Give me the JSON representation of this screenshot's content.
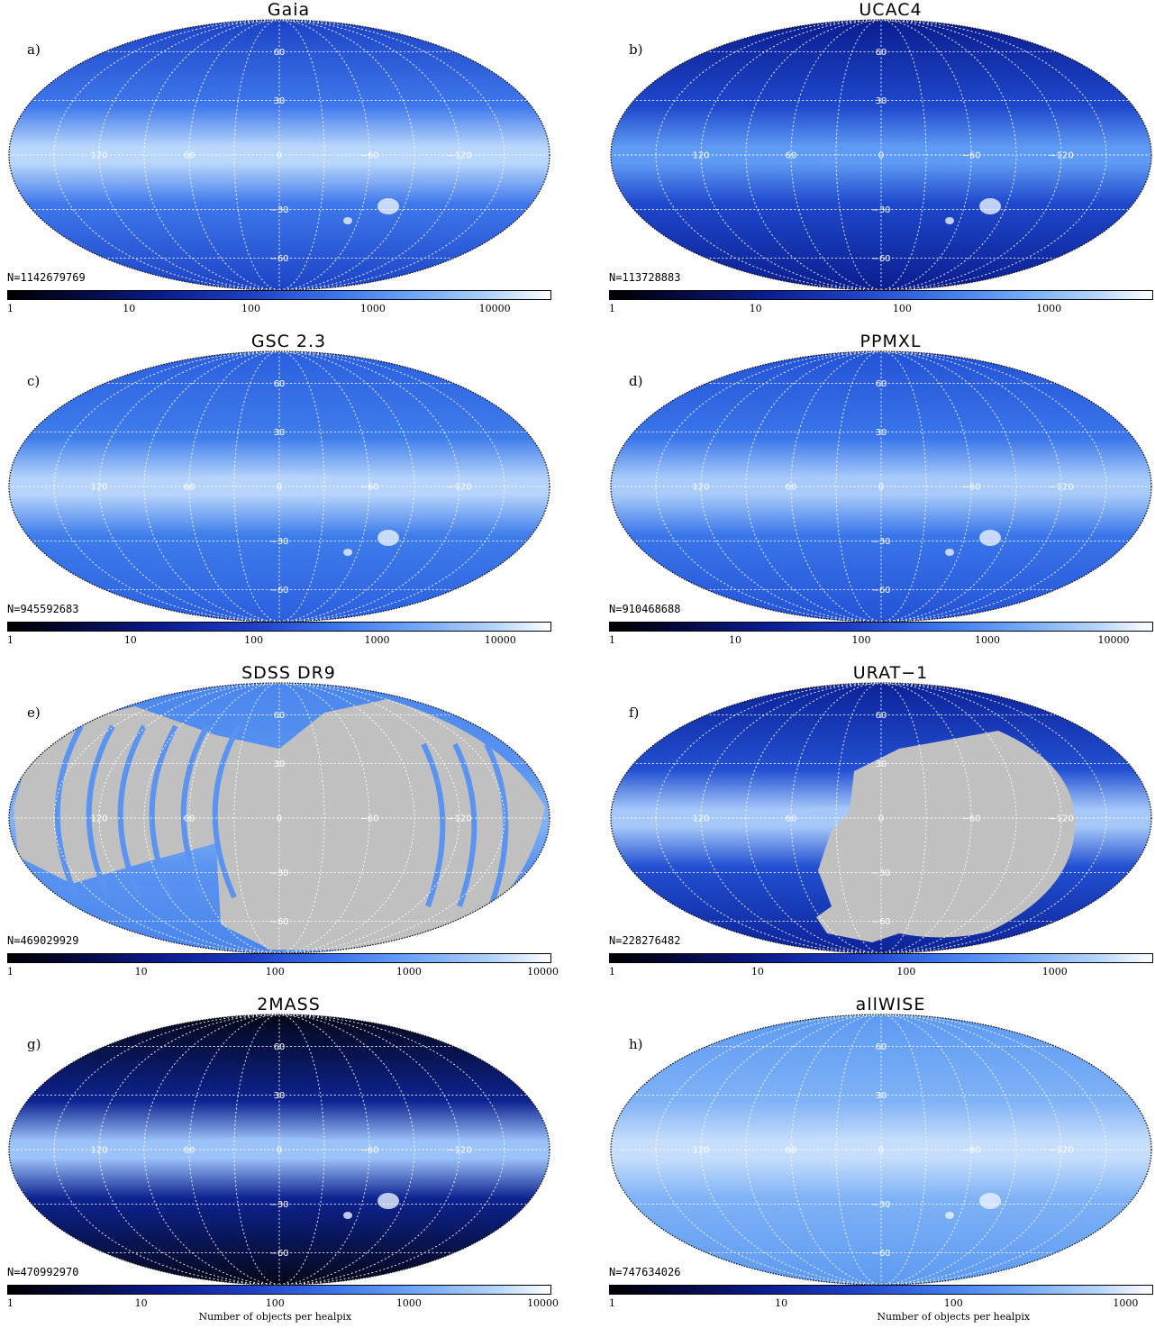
{
  "panels": [
    {
      "title": "Gaia",
      "letter": "a)",
      "count": "N=1142679769",
      "ticks": [
        "1",
        "10",
        "100",
        "1000",
        "10000"
      ],
      "decades": 4.45,
      "colors": {
        "outer": "#1c43c6",
        "mid": "#3f78ec",
        "plane": "#b9d7fb"
      },
      "mask": ""
    },
    {
      "title": "UCAC4",
      "letter": "b)",
      "count": "N=113728883",
      "ticks": [
        "1",
        "10",
        "100",
        "1000"
      ],
      "decades": 3.7,
      "colors": {
        "outer": "#0a1d8f",
        "mid": "#1e48cc",
        "plane": "#5f9af4"
      },
      "mask": ""
    },
    {
      "title": "GSC 2.3",
      "letter": "c)",
      "count": "N=945592683",
      "ticks": [
        "1",
        "10",
        "100",
        "1000",
        "10000"
      ],
      "decades": 4.4,
      "colors": {
        "outer": "#2b5fdf",
        "mid": "#3f7deb",
        "plane": "#b6d4fb"
      },
      "mask": ""
    },
    {
      "title": "PPMXL",
      "letter": "d)",
      "count": "N=910468688",
      "ticks": [
        "1",
        "10",
        "100",
        "1000",
        "10000"
      ],
      "decades": 4.3,
      "colors": {
        "outer": "#2352d6",
        "mid": "#3a76ea",
        "plane": "#a8cbfa"
      },
      "mask": ""
    },
    {
      "title": "SDSS DR9",
      "letter": "e)",
      "count": "N=469029929",
      "ticks": [
        "1",
        "10",
        "100",
        "1000",
        "10000"
      ],
      "decades": 4.05,
      "colors": {
        "outer": "#4a86ee",
        "mid": "#5a93f0",
        "plane": "#7eb0f6"
      },
      "mask": "sdss"
    },
    {
      "title": "URAT−1",
      "letter": "f)",
      "count": "N=228276482",
      "ticks": [
        "1",
        "10",
        "100",
        "1000"
      ],
      "decades": 3.65,
      "colors": {
        "outer": "#0c2298",
        "mid": "#2250d2",
        "plane": "#a6c8f9"
      },
      "mask": "urat"
    },
    {
      "title": "2MASS",
      "letter": "g)",
      "count": "N=470992970",
      "ticks": [
        "1",
        "10",
        "100",
        "1000",
        "10000"
      ],
      "decades": 4.05,
      "colors": {
        "outer": "#030718",
        "mid": "#0d2390",
        "plane": "#9cc3f9"
      },
      "mask": ""
    },
    {
      "title": "allWISE",
      "letter": "h)",
      "count": "N=747634026",
      "ticks": [
        "1",
        "10",
        "100",
        "1000"
      ],
      "decades": 3.15,
      "colors": {
        "outer": "#5d9af2",
        "mid": "#7fb2f6",
        "plane": "#c6defc"
      },
      "mask": ""
    }
  ],
  "grid_labels": {
    "longitude": [
      "120",
      "60",
      "0",
      "−60",
      "−120"
    ],
    "latitude": [
      "60",
      "30",
      "−30",
      "−60"
    ]
  },
  "colorbar_xlabel": "Number of objects per healpix",
  "colors": {
    "mask_gray": "#c0c0c0",
    "grid": "#ffffff"
  }
}
